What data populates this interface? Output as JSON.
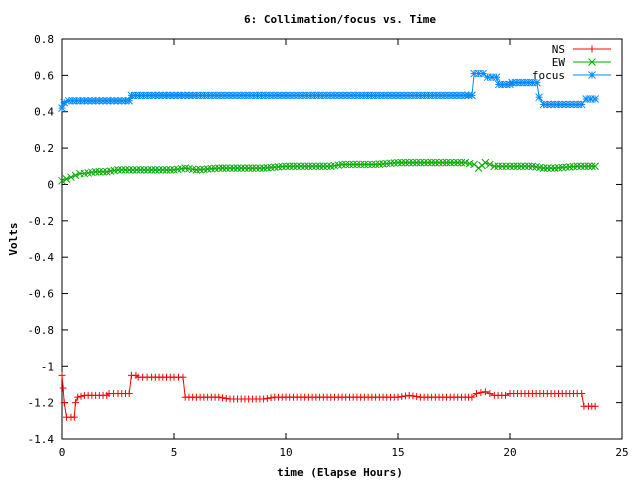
{
  "chart_data": {
    "type": "line",
    "title": "6: Collimation/focus vs. Time",
    "xlabel": "time (Elapse Hours)",
    "ylabel": "Volts",
    "xlim": [
      0,
      25
    ],
    "ylim": [
      -1.4,
      0.8
    ],
    "x_ticks": [
      0,
      5,
      10,
      15,
      20,
      25
    ],
    "y_ticks": [
      -1.4,
      -1.2,
      -1,
      -0.8,
      -0.6,
      -0.4,
      -0.2,
      0,
      0.2,
      0.4,
      0.6,
      0.8
    ],
    "x_tick_labels": [
      "0",
      "5",
      "10",
      "15",
      "20",
      "25"
    ],
    "y_tick_labels": [
      "-1.4",
      "-1.2",
      "-1",
      "-0.8",
      "-0.6",
      "-0.4",
      "-0.2",
      "0",
      "0.2",
      "0.4",
      "0.6",
      "0.8"
    ],
    "grid": false,
    "legend_position": "top-right",
    "series": [
      {
        "name": "NS",
        "color": "#ff0000",
        "marker": "plus",
        "points": [
          [
            0,
            -1.05
          ],
          [
            0.05,
            -1.12
          ],
          [
            0.1,
            -1.2
          ],
          [
            0.2,
            -1.28
          ],
          [
            0.4,
            -1.28
          ],
          [
            0.55,
            -1.28
          ],
          [
            0.6,
            -1.2
          ],
          [
            0.7,
            -1.17
          ],
          [
            1.0,
            -1.16
          ],
          [
            1.5,
            -1.16
          ],
          [
            2.0,
            -1.16
          ],
          [
            2.1,
            -1.15
          ],
          [
            2.5,
            -1.15
          ],
          [
            3.0,
            -1.15
          ],
          [
            3.1,
            -1.05
          ],
          [
            3.3,
            -1.05
          ],
          [
            3.4,
            -1.06
          ],
          [
            4.0,
            -1.06
          ],
          [
            4.5,
            -1.06
          ],
          [
            5.0,
            -1.06
          ],
          [
            5.4,
            -1.06
          ],
          [
            5.5,
            -1.17
          ],
          [
            6.0,
            -1.17
          ],
          [
            7.0,
            -1.17
          ],
          [
            7.5,
            -1.18
          ],
          [
            8.0,
            -1.18
          ],
          [
            9.0,
            -1.18
          ],
          [
            9.5,
            -1.17
          ],
          [
            10.0,
            -1.17
          ],
          [
            11.0,
            -1.17
          ],
          [
            12.0,
            -1.17
          ],
          [
            13.0,
            -1.17
          ],
          [
            14.0,
            -1.17
          ],
          [
            15.0,
            -1.17
          ],
          [
            15.5,
            -1.16
          ],
          [
            16.0,
            -1.17
          ],
          [
            17.0,
            -1.17
          ],
          [
            18.0,
            -1.17
          ],
          [
            18.3,
            -1.17
          ],
          [
            18.5,
            -1.15
          ],
          [
            18.9,
            -1.14
          ],
          [
            19.3,
            -1.16
          ],
          [
            19.8,
            -1.16
          ],
          [
            20.0,
            -1.15
          ],
          [
            21.0,
            -1.15
          ],
          [
            22.0,
            -1.15
          ],
          [
            23.0,
            -1.15
          ],
          [
            23.2,
            -1.15
          ],
          [
            23.3,
            -1.22
          ],
          [
            23.5,
            -1.22
          ],
          [
            23.8,
            -1.22
          ]
        ]
      },
      {
        "name": "EW",
        "color": "#00aa00",
        "marker": "cross",
        "points": [
          [
            0,
            0.02
          ],
          [
            0.2,
            0.03
          ],
          [
            0.4,
            0.04
          ],
          [
            0.6,
            0.05
          ],
          [
            0.8,
            0.06
          ],
          [
            1.0,
            0.06
          ],
          [
            1.5,
            0.07
          ],
          [
            2.0,
            0.07
          ],
          [
            2.5,
            0.08
          ],
          [
            3.0,
            0.08
          ],
          [
            4.0,
            0.08
          ],
          [
            5.0,
            0.08
          ],
          [
            5.5,
            0.09
          ],
          [
            6.0,
            0.08
          ],
          [
            7.0,
            0.09
          ],
          [
            8.0,
            0.09
          ],
          [
            9.0,
            0.09
          ],
          [
            10.0,
            0.1
          ],
          [
            11.0,
            0.1
          ],
          [
            12.0,
            0.1
          ],
          [
            12.5,
            0.11
          ],
          [
            13.0,
            0.11
          ],
          [
            14.0,
            0.11
          ],
          [
            15.0,
            0.12
          ],
          [
            16.0,
            0.12
          ],
          [
            17.0,
            0.12
          ],
          [
            18.0,
            0.12
          ],
          [
            18.4,
            0.11
          ],
          [
            18.6,
            0.09
          ],
          [
            18.9,
            0.12
          ],
          [
            19.3,
            0.1
          ],
          [
            20.0,
            0.1
          ],
          [
            21.0,
            0.1
          ],
          [
            21.5,
            0.09
          ],
          [
            22.0,
            0.09
          ],
          [
            23.0,
            0.1
          ],
          [
            23.5,
            0.1
          ],
          [
            23.8,
            0.1
          ]
        ]
      },
      {
        "name": "focus",
        "color": "#0088ff",
        "marker": "star",
        "points": [
          [
            0,
            0.42
          ],
          [
            0.1,
            0.45
          ],
          [
            0.3,
            0.46
          ],
          [
            1.0,
            0.46
          ],
          [
            2.0,
            0.46
          ],
          [
            3.0,
            0.46
          ],
          [
            3.1,
            0.49
          ],
          [
            4.0,
            0.49
          ],
          [
            5.0,
            0.49
          ],
          [
            6.0,
            0.49
          ],
          [
            8.0,
            0.49
          ],
          [
            10.0,
            0.49
          ],
          [
            12.0,
            0.49
          ],
          [
            14.0,
            0.49
          ],
          [
            16.0,
            0.49
          ],
          [
            18.0,
            0.49
          ],
          [
            18.3,
            0.49
          ],
          [
            18.4,
            0.61
          ],
          [
            18.8,
            0.61
          ],
          [
            19.0,
            0.59
          ],
          [
            19.4,
            0.59
          ],
          [
            19.5,
            0.55
          ],
          [
            20.0,
            0.55
          ],
          [
            20.1,
            0.56
          ],
          [
            21.0,
            0.56
          ],
          [
            21.2,
            0.56
          ],
          [
            21.3,
            0.48
          ],
          [
            21.5,
            0.44
          ],
          [
            22.0,
            0.44
          ],
          [
            22.5,
            0.44
          ],
          [
            23.2,
            0.44
          ],
          [
            23.4,
            0.47
          ],
          [
            23.8,
            0.47
          ]
        ]
      }
    ]
  }
}
